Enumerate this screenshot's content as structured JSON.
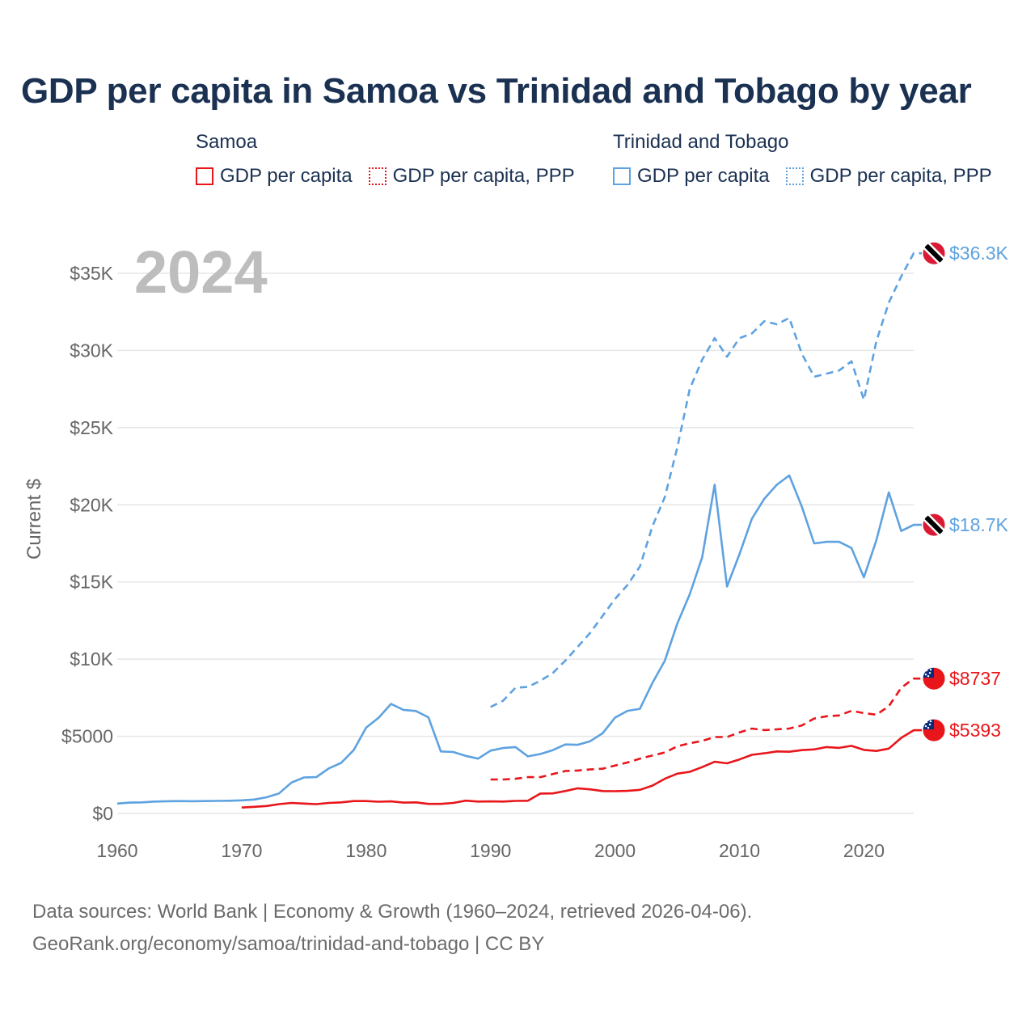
{
  "colors": {
    "samoa": "#e8161b",
    "tt": "#5ea2e0",
    "title": "#1b3152",
    "grid": "#e6e6e6",
    "axis_text": "#666666",
    "footer": "#6b6b6b",
    "year_watermark": "#bdbdbd"
  },
  "title": "GDP per capita in Samoa vs Trinidad and Tobago by year",
  "legend": {
    "samoa": {
      "name": "Samoa",
      "gdp": "GDP per capita",
      "ppp": "GDP per capita, PPP"
    },
    "tt": {
      "name": "Trinidad and Tobago",
      "gdp": "GDP per capita",
      "ppp": "GDP per capita, PPP"
    }
  },
  "footer": {
    "line1": "Data sources: World Bank | Economy & Growth (1960–2024, retrieved 2026-04-06).",
    "line2": "GeoRank.org/economy/samoa/trinidad-and-tobago | CC BY"
  },
  "chart_data": {
    "type": "line",
    "title": "GDP per capita in Samoa vs Trinidad and Tobago by year",
    "year_label": "2024",
    "ylabel": "Current $",
    "xlim": [
      1960,
      2024
    ],
    "ylim": [
      0,
      37000
    ],
    "x_ticks": [
      1960,
      1970,
      1980,
      1990,
      2000,
      2010,
      2020
    ],
    "y_ticks": [
      {
        "value": 0,
        "label": "$0"
      },
      {
        "value": 5000,
        "label": "$5000"
      },
      {
        "value": 10000,
        "label": "$10K"
      },
      {
        "value": 15000,
        "label": "$15K"
      },
      {
        "value": 20000,
        "label": "$20K"
      },
      {
        "value": 25000,
        "label": "$25K"
      },
      {
        "value": 30000,
        "label": "$30K"
      },
      {
        "value": 35000,
        "label": "$35K"
      }
    ],
    "series": [
      {
        "id": "tt_ppp",
        "name": "Trinidad and Tobago — GDP per capita, PPP",
        "country": "tt",
        "dashed": true,
        "end_label": "$36.3K",
        "start_year": 1990,
        "values": [
          6900,
          7300,
          8150,
          8200,
          8600,
          9100,
          9900,
          10800,
          11700,
          12800,
          13900,
          14800,
          16000,
          18600,
          20500,
          23700,
          27500,
          29400,
          30800,
          29600,
          30800,
          31100,
          31900,
          31700,
          32100,
          29800,
          28300,
          28500,
          28700,
          29300,
          26800,
          30600,
          33100,
          34800,
          36300
        ]
      },
      {
        "id": "tt_gdp",
        "name": "Trinidad and Tobago — GDP per capita",
        "country": "tt",
        "dashed": false,
        "end_label": "$18.7K",
        "start_year": 1960,
        "values": [
          640,
          700,
          720,
          770,
          790,
          800,
          790,
          800,
          810,
          820,
          850,
          900,
          1050,
          1300,
          2000,
          2330,
          2360,
          2920,
          3280,
          4100,
          5560,
          6200,
          7100,
          6710,
          6640,
          6230,
          4020,
          3980,
          3730,
          3550,
          4070,
          4240,
          4300,
          3700,
          3850,
          4100,
          4470,
          4450,
          4680,
          5190,
          6210,
          6650,
          6780,
          8450,
          9900,
          12300,
          14200,
          16600,
          21300,
          14700,
          16800,
          19100,
          20400,
          21300,
          21900,
          19900,
          17500,
          17600,
          17600,
          17200,
          15300,
          17700,
          20800,
          18300,
          18700
        ]
      },
      {
        "id": "samoa_ppp",
        "name": "Samoa — GDP per capita, PPP",
        "country": "samoa",
        "dashed": true,
        "end_label": "$8737",
        "start_year": 1990,
        "values": [
          2200,
          2200,
          2250,
          2350,
          2350,
          2550,
          2750,
          2780,
          2850,
          2900,
          3100,
          3300,
          3550,
          3750,
          3950,
          4350,
          4550,
          4700,
          4950,
          4950,
          5250,
          5500,
          5400,
          5450,
          5500,
          5700,
          6150,
          6300,
          6350,
          6650,
          6500,
          6400,
          6950,
          8150,
          8737
        ]
      },
      {
        "id": "samoa_gdp",
        "name": "Samoa — GDP per capita",
        "country": "samoa",
        "dashed": false,
        "end_label": "$5393",
        "start_year": 1970,
        "values": [
          380,
          430,
          480,
          600,
          680,
          640,
          600,
          680,
          720,
          800,
          800,
          760,
          780,
          700,
          720,
          620,
          620,
          680,
          830,
          770,
          780,
          770,
          810,
          820,
          1290,
          1300,
          1450,
          1630,
          1560,
          1450,
          1440,
          1460,
          1530,
          1800,
          2250,
          2580,
          2700,
          3000,
          3350,
          3250,
          3500,
          3800,
          3900,
          4020,
          4000,
          4100,
          4150,
          4300,
          4250,
          4380,
          4120,
          4050,
          4200,
          4900,
          5393
        ]
      }
    ]
  }
}
